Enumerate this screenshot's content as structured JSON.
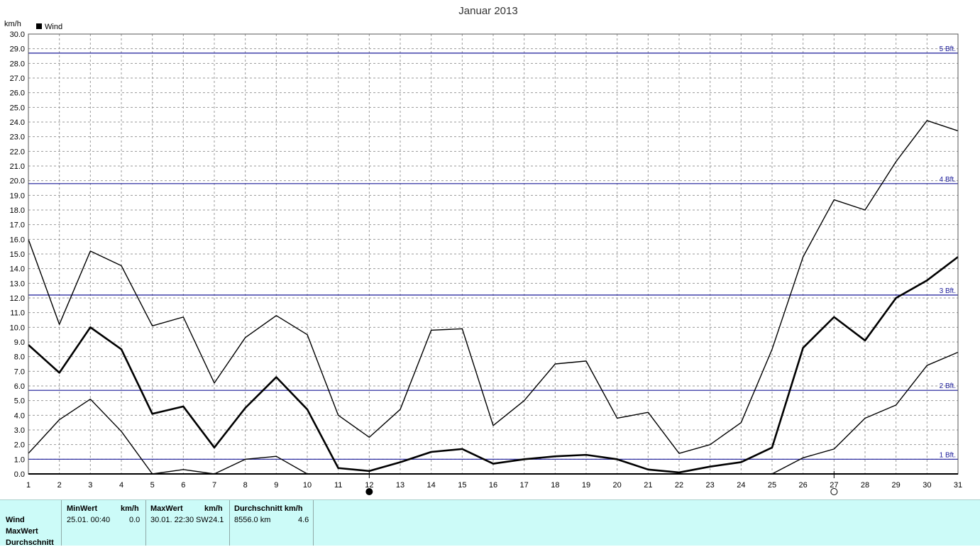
{
  "chart_data": {
    "type": "line",
    "title": "Januar 2013",
    "ylabel": "km/h",
    "legend": {
      "label": "Wind",
      "color": "#000000",
      "placement": "top-left"
    },
    "ylim": [
      0,
      30
    ],
    "ytick_step": 1,
    "ytick_labels": [
      "0.0",
      "1.0",
      "2.0",
      "3.0",
      "4.0",
      "5.0",
      "6.0",
      "7.0",
      "8.0",
      "9.0",
      "10.0",
      "11.0",
      "12.0",
      "13.0",
      "14.0",
      "15.0",
      "16.0",
      "17.0",
      "18.0",
      "19.0",
      "20.0",
      "21.0",
      "22.0",
      "23.0",
      "24.0",
      "25.0",
      "26.0",
      "27.0",
      "28.0",
      "29.0",
      "30.0"
    ],
    "xlim": [
      1,
      31
    ],
    "x": [
      "1",
      "2",
      "3",
      "4",
      "5",
      "6",
      "7",
      "8",
      "9",
      "10",
      "11",
      "12",
      "13",
      "14",
      "15",
      "16",
      "17",
      "18",
      "19",
      "20",
      "21",
      "22",
      "23",
      "24",
      "25",
      "26",
      "27",
      "28",
      "29",
      "30",
      "31"
    ],
    "grid": true,
    "series": [
      {
        "role": "max",
        "values": [
          16.0,
          10.2,
          15.2,
          14.2,
          10.1,
          10.7,
          6.2,
          9.3,
          10.8,
          9.5,
          4.0,
          2.5,
          4.4,
          9.8,
          9.9,
          3.3,
          5.0,
          7.5,
          7.7,
          3.8,
          4.2,
          1.4,
          2.0,
          3.5,
          8.5,
          14.8,
          18.7,
          18.0,
          21.3,
          24.1,
          23.4
        ]
      },
      {
        "role": "avg",
        "values": [
          8.8,
          6.9,
          10.0,
          8.5,
          4.1,
          4.6,
          1.8,
          4.5,
          6.6,
          4.4,
          0.4,
          0.2,
          0.8,
          1.5,
          1.7,
          0.7,
          1.0,
          1.2,
          1.3,
          1.0,
          0.3,
          0.1,
          0.5,
          0.8,
          1.8,
          8.6,
          10.7,
          9.1,
          12.0,
          13.2,
          14.8
        ]
      },
      {
        "role": "min",
        "values": [
          1.4,
          3.7,
          5.1,
          2.9,
          0.0,
          0.3,
          0.0,
          1.0,
          1.2,
          0.0,
          0.0,
          0.0,
          0.0,
          0.0,
          0.0,
          0.0,
          0.0,
          0.0,
          0.0,
          0.0,
          0.0,
          0.0,
          0.0,
          0.0,
          0.0,
          1.1,
          1.7,
          3.8,
          4.7,
          7.4,
          8.3
        ]
      }
    ],
    "reference_lines": [
      {
        "label": "1 Bft.",
        "y": 1.0
      },
      {
        "label": "2 Bft.",
        "y": 5.7
      },
      {
        "label": "3 Bft.",
        "y": 12.2
      },
      {
        "label": "4 Bft.",
        "y": 19.8
      },
      {
        "label": "5 Bft.",
        "y": 28.7
      }
    ],
    "moon_markers": [
      {
        "day": 12,
        "phase": "new-moon"
      },
      {
        "day": 27,
        "phase": "full-moon"
      }
    ],
    "colors": {
      "series": "#000000",
      "reference": "#1a1a99",
      "grid": "#9a9a9a",
      "panel": "#ccfbf8"
    }
  },
  "stats": {
    "row_labels": [
      "Wind",
      "MaxWert",
      "Durchschnitt"
    ],
    "min": {
      "header": "MinWert",
      "unit": "km/h",
      "when": "25.01.  00:40",
      "value": "0.0"
    },
    "max": {
      "header": "MaxWert",
      "unit": "km/h",
      "when": "30.01.  22:30",
      "dir": "SW",
      "value": "24.1"
    },
    "avg": {
      "header": "Durchschnitt km/h",
      "distance": "8556.0 km",
      "value": "4.6"
    }
  }
}
